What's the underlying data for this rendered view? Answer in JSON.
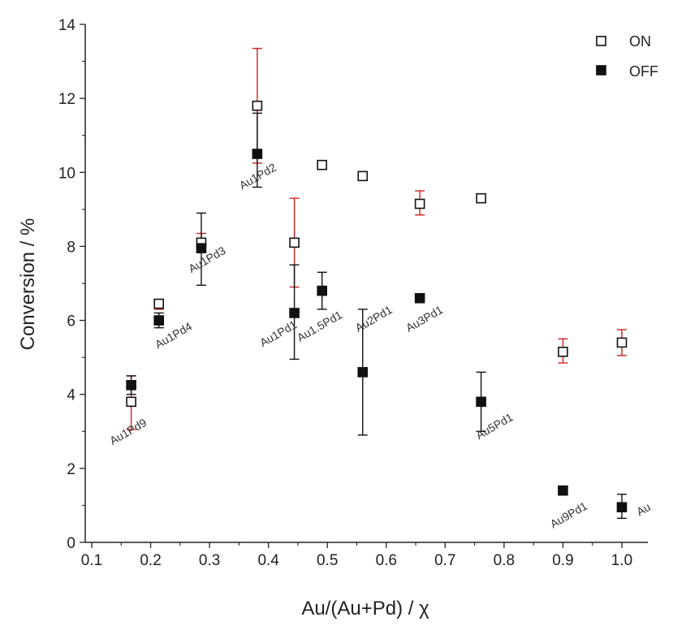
{
  "chart_data": {
    "type": "scatter",
    "xlabel": "Au/(Au+Pd) / χ",
    "ylabel": "Conversion / %",
    "xlim": [
      0.1,
      1.05
    ],
    "ylim": [
      0,
      14
    ],
    "xticks": [
      0.1,
      0.2,
      0.3,
      0.4,
      0.5,
      0.6,
      0.7,
      0.8,
      0.9,
      1.0
    ],
    "xtick_labels": [
      "0.1",
      "0.2",
      "0.3",
      "0.4",
      "0.5",
      "0.6",
      "0.7",
      "0.8",
      "0.9",
      "1.0"
    ],
    "yticks": [
      0,
      2,
      4,
      6,
      8,
      10,
      12,
      14
    ],
    "ytick_labels": [
      "0",
      "2",
      "4",
      "6",
      "8",
      "10",
      "12",
      "14"
    ],
    "grid": false,
    "legend_position": "top-right",
    "colors": {
      "on_errorbar": "#cc2222",
      "off_errorbar": "#111111",
      "marker": "#111111"
    },
    "series": [
      {
        "name": "ON",
        "marker": "open-square",
        "points": [
          {
            "x": 0.167,
            "y": 3.8,
            "yerr_low": 3.05,
            "yerr_high": 4.5
          },
          {
            "x": 0.214,
            "y": 6.45,
            "yerr_low": 6.3,
            "yerr_high": 6.55
          },
          {
            "x": 0.286,
            "y": 8.1,
            "yerr_low": 7.9,
            "yerr_high": 8.35
          },
          {
            "x": 0.381,
            "y": 11.8,
            "yerr_low": 10.25,
            "yerr_high": 13.35
          },
          {
            "x": 0.444,
            "y": 8.1,
            "yerr_low": 6.9,
            "yerr_high": 9.3
          },
          {
            "x": 0.491,
            "y": 10.2,
            "yerr_low": 10.1,
            "yerr_high": 10.3
          },
          {
            "x": 0.56,
            "y": 9.9,
            "yerr_low": 9.8,
            "yerr_high": 10.0
          },
          {
            "x": 0.657,
            "y": 9.15,
            "yerr_low": 8.85,
            "yerr_high": 9.5
          },
          {
            "x": 0.761,
            "y": 9.3,
            "yerr_low": 9.2,
            "yerr_high": 9.4
          },
          {
            "x": 0.9,
            "y": 5.15,
            "yerr_low": 4.85,
            "yerr_high": 5.5
          },
          {
            "x": 1.0,
            "y": 5.4,
            "yerr_low": 5.05,
            "yerr_high": 5.75
          }
        ]
      },
      {
        "name": "OFF",
        "marker": "filled-square",
        "points": [
          {
            "x": 0.167,
            "y": 4.25,
            "yerr_low": 4.0,
            "yerr_high": 4.5
          },
          {
            "x": 0.214,
            "y": 6.0,
            "yerr_low": 5.8,
            "yerr_high": 6.2
          },
          {
            "x": 0.286,
            "y": 7.95,
            "yerr_low": 6.95,
            "yerr_high": 8.9
          },
          {
            "x": 0.381,
            "y": 10.5,
            "yerr_low": 9.6,
            "yerr_high": 11.6
          },
          {
            "x": 0.444,
            "y": 6.2,
            "yerr_low": 4.95,
            "yerr_high": 7.5
          },
          {
            "x": 0.491,
            "y": 6.8,
            "yerr_low": 6.3,
            "yerr_high": 7.3
          },
          {
            "x": 0.56,
            "y": 4.6,
            "yerr_low": 2.9,
            "yerr_high": 6.3
          },
          {
            "x": 0.657,
            "y": 6.6,
            "yerr_low": 6.55,
            "yerr_high": 6.65
          },
          {
            "x": 0.761,
            "y": 3.8,
            "yerr_low": 3.0,
            "yerr_high": 4.6
          },
          {
            "x": 0.9,
            "y": 1.4,
            "yerr_low": 1.35,
            "yerr_high": 1.45
          },
          {
            "x": 1.0,
            "y": 0.95,
            "yerr_low": 0.65,
            "yerr_high": 1.3
          }
        ]
      }
    ],
    "annotations": [
      {
        "text": "Au1Pd9",
        "x": 0.165,
        "y": 2.9
      },
      {
        "text": "Au1Pd4",
        "x": 0.242,
        "y": 5.5
      },
      {
        "text": "Au1Pd3",
        "x": 0.299,
        "y": 7.55
      },
      {
        "text": "Au1Pd2",
        "x": 0.385,
        "y": 9.8
      },
      {
        "text": "Au1Pd1",
        "x": 0.42,
        "y": 5.55
      },
      {
        "text": "Au1.5Pd1",
        "x": 0.49,
        "y": 5.75
      },
      {
        "text": "Au2Pd1",
        "x": 0.582,
        "y": 5.95
      },
      {
        "text": "Au3Pd1",
        "x": 0.668,
        "y": 5.95
      },
      {
        "text": "Au5Pd1",
        "x": 0.787,
        "y": 3.05
      },
      {
        "text": "Au9Pd1",
        "x": 0.913,
        "y": 0.65
      },
      {
        "text": "Au",
        "x": 1.04,
        "y": 0.8
      }
    ]
  }
}
